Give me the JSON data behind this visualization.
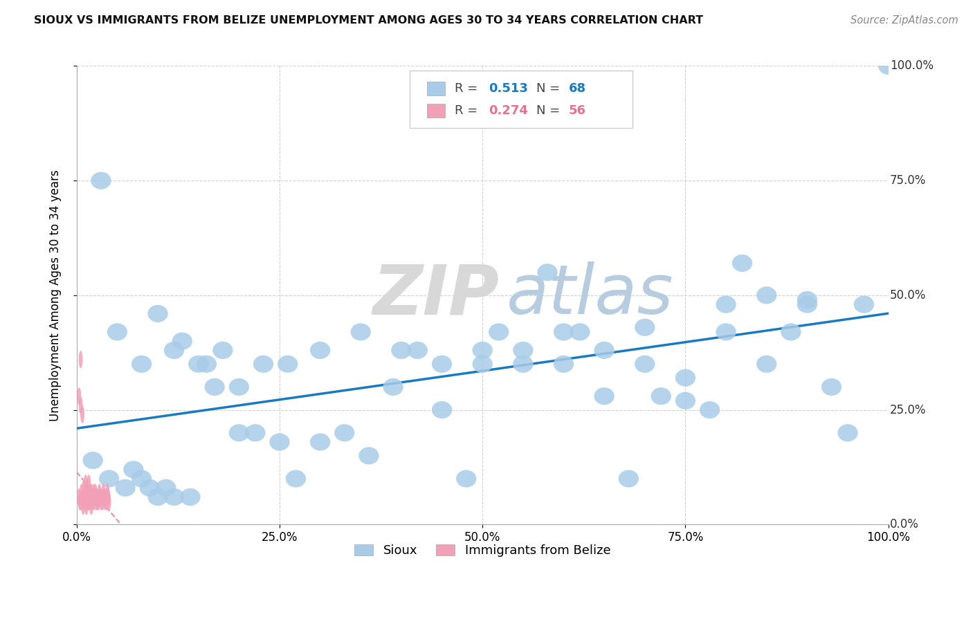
{
  "title": "SIOUX VS IMMIGRANTS FROM BELIZE UNEMPLOYMENT AMONG AGES 30 TO 34 YEARS CORRELATION CHART",
  "source": "Source: ZipAtlas.com",
  "ylabel": "Unemployment Among Ages 30 to 34 years",
  "watermark_zip": "ZIP",
  "watermark_atlas": "atlas",
  "xlim": [
    0,
    1
  ],
  "ylim": [
    0,
    1
  ],
  "xticks": [
    0.0,
    0.25,
    0.5,
    0.75,
    1.0
  ],
  "yticks": [
    0.0,
    0.25,
    0.5,
    0.75,
    1.0
  ],
  "xticklabels_left": [
    "0.0%",
    "",
    "",
    "",
    ""
  ],
  "xticklabels_bottom": [
    "0.0%",
    "25.0%",
    "50.0%",
    "75.0%",
    "100.0%"
  ],
  "yticklabels_right": [
    "0.0%",
    "25.0%",
    "50.0%",
    "75.0%",
    "100.0%"
  ],
  "sioux_color": "#a8cce8",
  "belize_color": "#f2a0b8",
  "sioux_line_color": "#1a7abf",
  "belize_line_color": "#e87090",
  "legend_sioux_R": "0.513",
  "legend_sioux_N": "68",
  "legend_belize_R": "0.274",
  "legend_belize_N": "56",
  "sioux_label": "Sioux",
  "belize_label": "Immigrants from Belize",
  "sioux_x": [
    0.02,
    0.04,
    0.06,
    0.07,
    0.08,
    0.09,
    0.1,
    0.11,
    0.12,
    0.13,
    0.14,
    0.16,
    0.18,
    0.2,
    0.22,
    0.25,
    0.27,
    0.3,
    0.33,
    0.36,
    0.39,
    0.42,
    0.45,
    0.48,
    0.5,
    0.52,
    0.55,
    0.58,
    0.6,
    0.62,
    0.65,
    0.68,
    0.7,
    0.72,
    0.75,
    0.78,
    0.8,
    0.82,
    0.85,
    0.88,
    0.9,
    0.93,
    0.95,
    0.97,
    1.0,
    0.03,
    0.05,
    0.08,
    0.1,
    0.12,
    0.15,
    0.17,
    0.2,
    0.23,
    0.26,
    0.3,
    0.35,
    0.4,
    0.45,
    0.5,
    0.55,
    0.6,
    0.65,
    0.7,
    0.75,
    0.8,
    0.85,
    0.9
  ],
  "sioux_y": [
    0.14,
    0.1,
    0.08,
    0.12,
    0.1,
    0.08,
    0.06,
    0.08,
    0.06,
    0.4,
    0.06,
    0.35,
    0.38,
    0.3,
    0.2,
    0.18,
    0.1,
    0.18,
    0.2,
    0.15,
    0.3,
    0.38,
    0.25,
    0.1,
    0.38,
    0.42,
    0.35,
    0.55,
    0.35,
    0.42,
    0.28,
    0.1,
    0.43,
    0.28,
    0.32,
    0.25,
    0.42,
    0.57,
    0.5,
    0.42,
    0.48,
    0.3,
    0.2,
    0.48,
    1.0,
    0.75,
    0.42,
    0.35,
    0.46,
    0.38,
    0.35,
    0.3,
    0.2,
    0.35,
    0.35,
    0.38,
    0.42,
    0.38,
    0.35,
    0.35,
    0.38,
    0.42,
    0.38,
    0.35,
    0.27,
    0.48,
    0.35,
    0.49
  ],
  "belize_x": [
    0.003,
    0.004,
    0.005,
    0.006,
    0.007,
    0.008,
    0.009,
    0.01,
    0.011,
    0.012,
    0.013,
    0.014,
    0.015,
    0.016,
    0.017,
    0.018,
    0.019,
    0.02,
    0.021,
    0.022,
    0.023,
    0.024,
    0.025,
    0.026,
    0.027,
    0.028,
    0.029,
    0.03,
    0.031,
    0.032,
    0.033,
    0.034,
    0.035,
    0.036,
    0.037,
    0.038,
    0.039,
    0.04,
    0.003,
    0.005,
    0.007,
    0.009,
    0.011,
    0.013,
    0.015,
    0.017,
    0.019,
    0.021,
    0.023,
    0.025,
    0.005,
    0.008,
    0.01,
    0.012,
    0.015,
    0.018
  ],
  "belize_y": [
    0.06,
    0.05,
    0.36,
    0.07,
    0.06,
    0.05,
    0.06,
    0.05,
    0.07,
    0.06,
    0.05,
    0.06,
    0.05,
    0.06,
    0.05,
    0.07,
    0.06,
    0.05,
    0.06,
    0.05,
    0.07,
    0.06,
    0.05,
    0.06,
    0.05,
    0.07,
    0.06,
    0.05,
    0.06,
    0.05,
    0.07,
    0.06,
    0.05,
    0.06,
    0.05,
    0.07,
    0.06,
    0.05,
    0.28,
    0.26,
    0.24,
    0.08,
    0.09,
    0.08,
    0.09,
    0.07,
    0.06,
    0.07,
    0.06,
    0.05,
    0.05,
    0.04,
    0.05,
    0.04,
    0.05,
    0.04
  ]
}
